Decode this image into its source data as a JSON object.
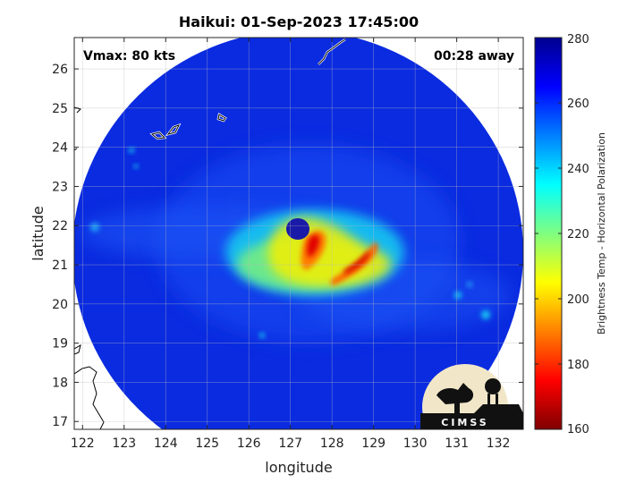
{
  "title": "Haikui: 01-Sep-2023 17:45:00",
  "annotations": {
    "vmax": "Vmax: 80 kts",
    "time_away": "00:28 away"
  },
  "axes": {
    "xlabel": "longitude",
    "ylabel": "latitude",
    "xticks": [
      "122",
      "123",
      "124",
      "125",
      "126",
      "127",
      "128",
      "129",
      "130",
      "131",
      "132"
    ],
    "yticks": [
      "17",
      "18",
      "19",
      "20",
      "21",
      "22",
      "23",
      "24",
      "25",
      "26"
    ]
  },
  "colorbar": {
    "label": "Brightness Temp - Horizontal Polarization",
    "ticks": [
      "160",
      "180",
      "200",
      "220",
      "240",
      "260",
      "280"
    ]
  },
  "logo": {
    "text": "CIMSS"
  },
  "colors": {
    "scene_background": "#0a2be0",
    "swath_outside": "#ffffff",
    "eye": "#1a1aa8",
    "colormap_low": "#800000",
    "colormap_high": "#00008f"
  },
  "chart_data": {
    "type": "heatmap",
    "title": "Haikui: 01-Sep-2023 17:45:00",
    "xlabel": "longitude",
    "ylabel": "latitude",
    "xlim": [
      121.8,
      132.6
    ],
    "ylim": [
      16.8,
      26.8
    ],
    "grid": true,
    "colorbar": {
      "label": "Brightness Temp - Horizontal Polarization",
      "range": [
        160,
        280
      ]
    },
    "storm_center": {
      "lon": 127.2,
      "lat": 22.0
    },
    "annotations": [
      "Vmax: 80 kts",
      "00:28 away"
    ]
  }
}
